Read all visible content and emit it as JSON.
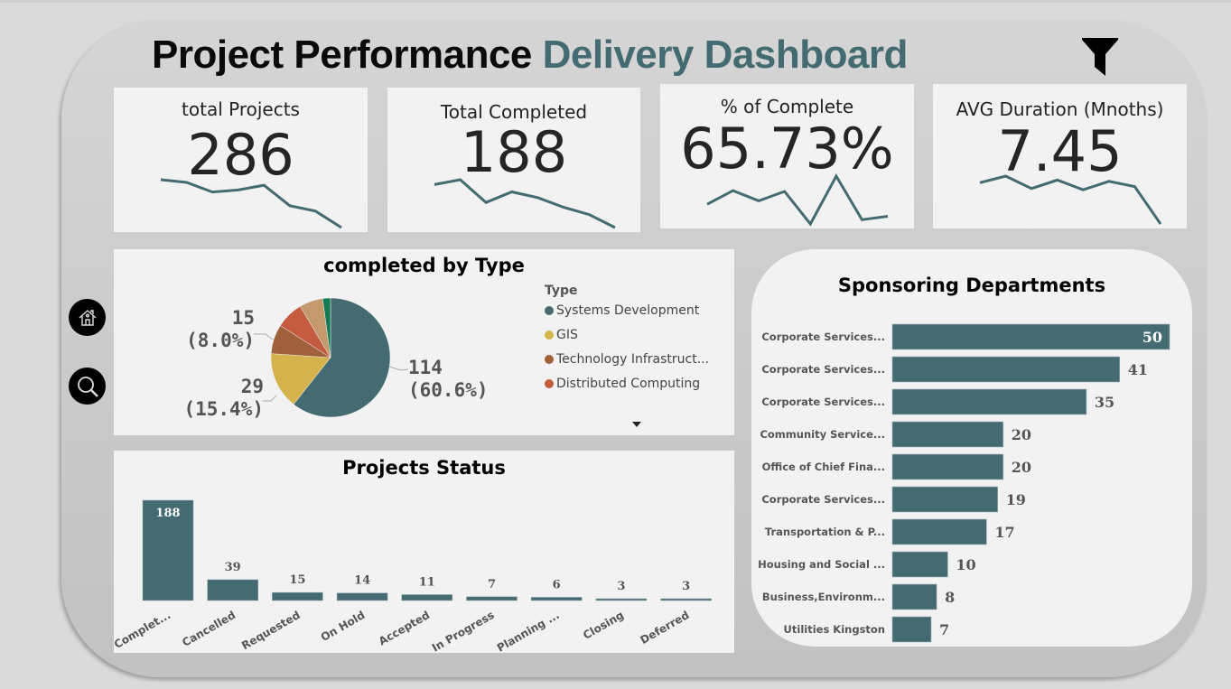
{
  "header": {
    "title_main": "Project Performance",
    "title_accent": "Delivery Dashboard",
    "filter_icon": "filter-icon"
  },
  "nav": {
    "home_icon": "home-icon",
    "search_icon": "search-icon"
  },
  "colors": {
    "accent": "#446b72",
    "card_bg": "#f2f2f2",
    "frame_bg": "#cbcbcb",
    "page_bg": "#dadada"
  },
  "kpis": [
    {
      "label": "total Projects",
      "value": "286",
      "trend": [
        8,
        7.6,
        6.2,
        6.5,
        7.2,
        4.2,
        3.4,
        1
      ]
    },
    {
      "label": "Total Completed",
      "value": "188",
      "trend": [
        7.5,
        8.1,
        5.3,
        6.6,
        5.9,
        4.7,
        3.8,
        2.2
      ]
    },
    {
      "label": "% of Complete",
      "value": "65.73%",
      "trend": [
        5.8,
        7.4,
        6.2,
        7.3,
        3.5,
        9.1,
        4.0,
        4.4
      ]
    },
    {
      "label": "AVG Duration (Mnoths)",
      "value": "7.45",
      "trend": [
        7.3,
        8.3,
        6.4,
        7.7,
        6.2,
        7.5,
        6.7,
        1.0
      ]
    }
  ],
  "chart_data": [
    {
      "type": "pie",
      "title": "completed by Type",
      "legend_title": "Type",
      "legend_placement": "right",
      "legend_scroll_icon": "triangle-down-icon",
      "slices": [
        {
          "name": "Systems Development",
          "value": 114,
          "label": "114",
          "pct_label": "(60.6%)",
          "color": "#446b72",
          "in_legend": true
        },
        {
          "name": "GIS",
          "value": 29,
          "label": "29",
          "pct_label": "(15.4%)",
          "color": "#d4b24c",
          "in_legend": true
        },
        {
          "name": "Technology Infrastruct...",
          "value": 15,
          "label": "15",
          "pct_label": "(8.0%)",
          "color": "#a0603a",
          "in_legend": true
        },
        {
          "name": "Distributed Computing",
          "value": 14,
          "color": "#c55b3f",
          "in_legend": true
        },
        {
          "name": "",
          "value": 12,
          "color": "#c49a6c",
          "in_legend": false
        },
        {
          "name": "",
          "value": 4,
          "color": "#137a54",
          "in_legend": false
        }
      ]
    },
    {
      "type": "bar",
      "title": "Projects Status",
      "orientation": "vertical",
      "categories": [
        "Complet...",
        "Cancelled",
        "Requested",
        "On Hold",
        "Accepted",
        "In Progress",
        "Planning ...",
        "Closing",
        "Deferred"
      ],
      "values": [
        188,
        39,
        15,
        14,
        11,
        7,
        6,
        3,
        3
      ],
      "color": "#446b72",
      "ylim": [
        0,
        188
      ]
    },
    {
      "type": "bar",
      "title": "Sponsoring Departments",
      "orientation": "horizontal",
      "categories": [
        "Corporate Services...",
        "Corporate Services...",
        "Corporate Services...",
        "Community Service...",
        "Office of Chief Fina...",
        "Corporate Services...",
        "Transportation & P...",
        "Housing and Social ...",
        "Business,Environm...",
        "Utilities Kingston"
      ],
      "values": [
        50,
        41,
        35,
        20,
        20,
        19,
        17,
        10,
        8,
        7
      ],
      "color": "#446b72",
      "xlim": [
        0,
        50
      ]
    }
  ]
}
